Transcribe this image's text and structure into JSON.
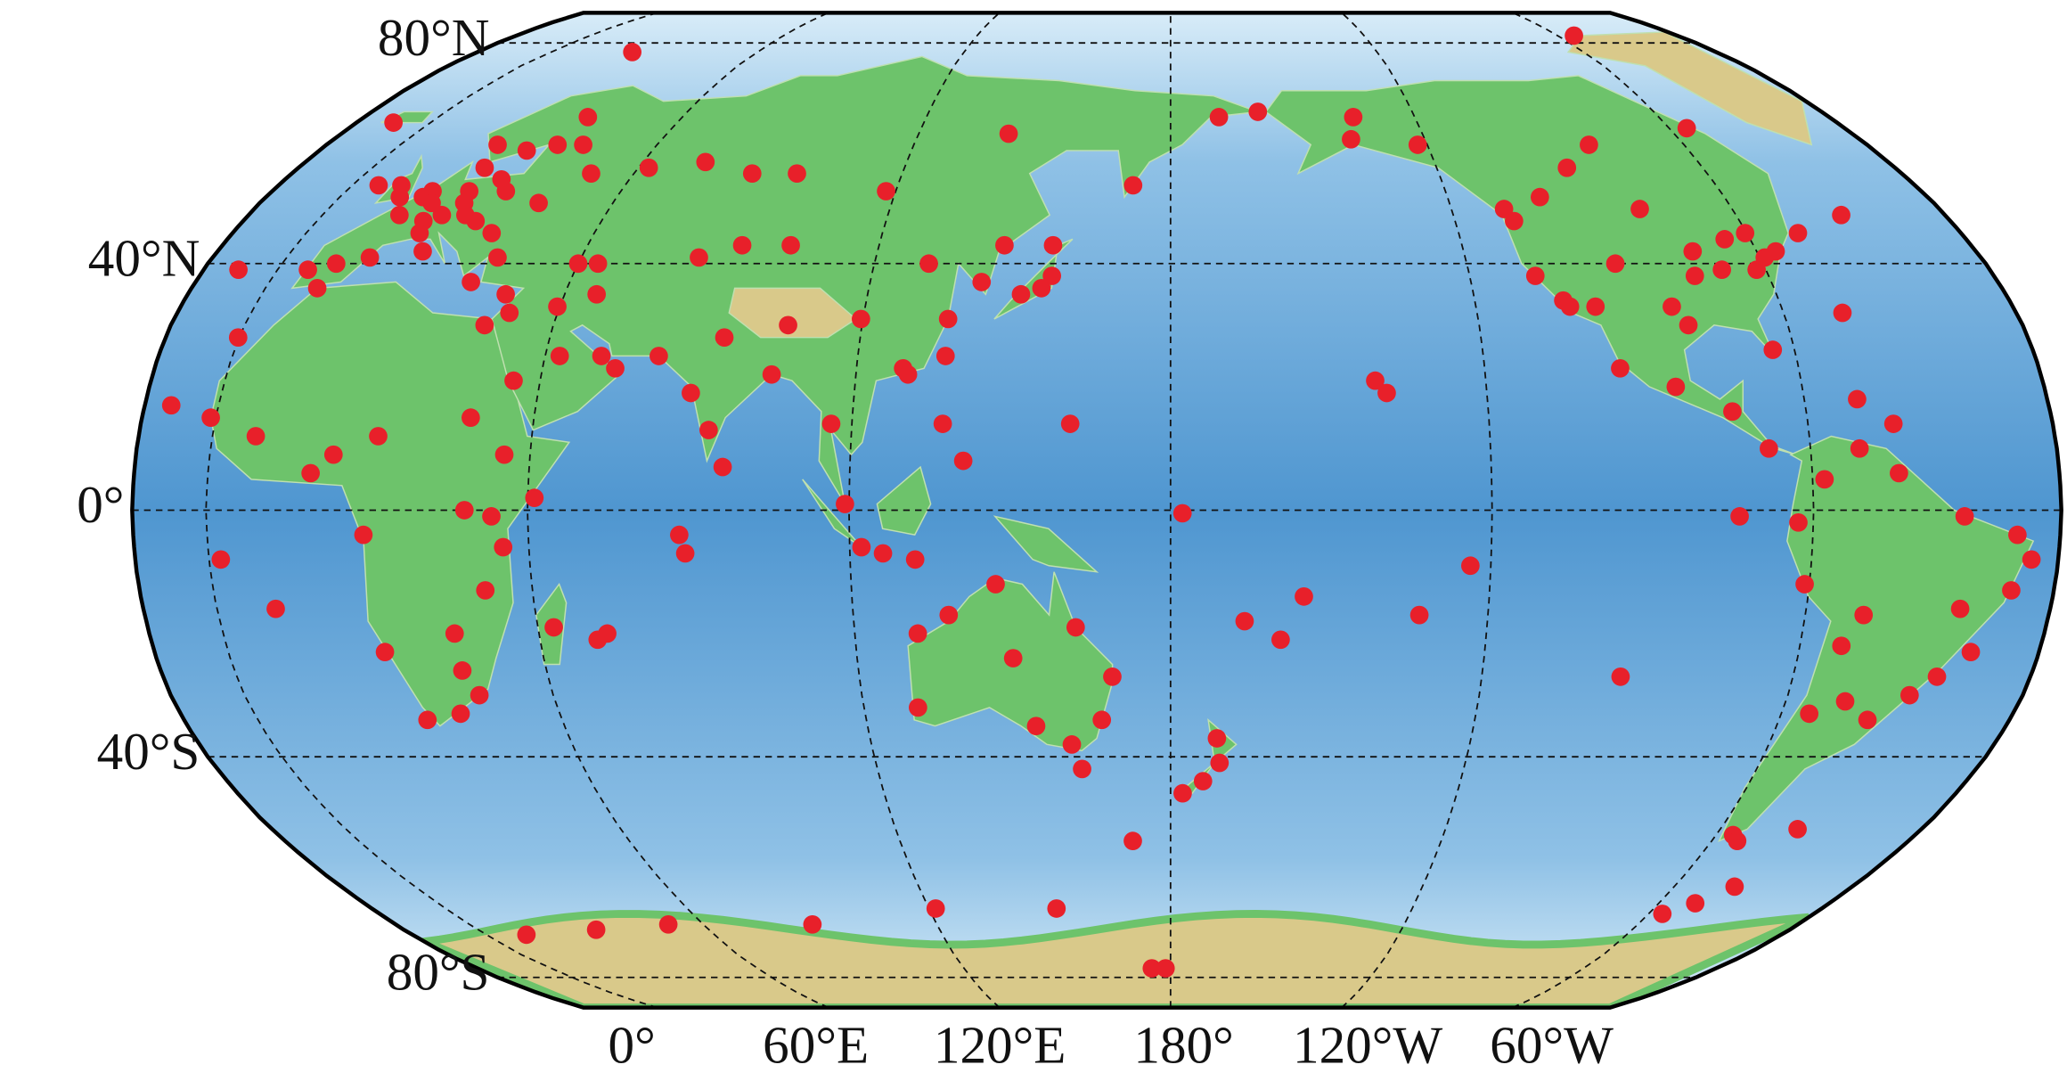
{
  "map": {
    "lat_ticks": [
      {
        "value": 80,
        "label": "80°N"
      },
      {
        "value": 40,
        "label": "40°N"
      },
      {
        "value": 0,
        "label": "0°"
      },
      {
        "value": -40,
        "label": "40°S"
      },
      {
        "value": -80,
        "label": "80°S"
      }
    ],
    "lon_ticks": [
      {
        "value": 0,
        "label": "0°"
      },
      {
        "value": 60,
        "label": "60°E"
      },
      {
        "value": 120,
        "label": "120°E"
      },
      {
        "value": 180,
        "label": "180°"
      },
      {
        "value": -120,
        "label": "120°W"
      },
      {
        "value": -60,
        "label": "60°W"
      }
    ],
    "station_color": "#e8202a",
    "stations": [
      [
        -9,
        39
      ],
      [
        -4,
        40
      ],
      [
        2,
        41
      ],
      [
        2,
        48
      ],
      [
        4,
        51
      ],
      [
        5,
        52
      ],
      [
        7,
        50
      ],
      [
        8,
        47
      ],
      [
        9,
        45
      ],
      [
        11,
        48
      ],
      [
        12,
        42
      ],
      [
        13,
        52
      ],
      [
        14,
        50
      ],
      [
        16,
        48
      ],
      [
        18,
        54
      ],
      [
        19,
        47
      ],
      [
        21,
        52
      ],
      [
        24,
        45
      ],
      [
        24,
        60
      ],
      [
        25,
        37
      ],
      [
        30,
        60
      ],
      [
        30,
        50
      ],
      [
        37,
        55
      ],
      [
        10,
        60
      ],
      [
        18,
        59
      ],
      [
        25,
        65
      ],
      [
        12,
        56
      ],
      [
        -3,
        53
      ],
      [
        -1,
        51
      ],
      [
        -8,
        53
      ],
      [
        -21,
        64
      ],
      [
        15,
        78
      ],
      [
        -5,
        36
      ],
      [
        28,
        41
      ],
      [
        33,
        35
      ],
      [
        35,
        32
      ],
      [
        45,
        40
      ],
      [
        44,
        33
      ],
      [
        49,
        40
      ],
      [
        51,
        35
      ],
      [
        39,
        21
      ],
      [
        47,
        25
      ],
      [
        58,
        23
      ],
      [
        55,
        25
      ],
      [
        49,
        56
      ],
      [
        61,
        57
      ],
      [
        73,
        55
      ],
      [
        83,
        55
      ],
      [
        104,
        52
      ],
      [
        129,
        62
      ],
      [
        87,
        43
      ],
      [
        69,
        41
      ],
      [
        77,
        43
      ],
      [
        90,
        30
      ],
      [
        104,
        31
      ],
      [
        116,
        40
      ],
      [
        121,
        31
      ],
      [
        113,
        23
      ],
      [
        114,
        22
      ],
      [
        121,
        25
      ],
      [
        127,
        37
      ],
      [
        135,
        35
      ],
      [
        139,
        36
      ],
      [
        141,
        38
      ],
      [
        141,
        43
      ],
      [
        131,
        43
      ],
      [
        158,
        53
      ],
      [
        180,
        65
      ],
      [
        -170,
        66
      ],
      [
        100,
        14
      ],
      [
        103,
        1
      ],
      [
        106,
        -6
      ],
      [
        110,
        -7
      ],
      [
        116,
        -8
      ],
      [
        77,
        13
      ],
      [
        80,
        7
      ],
      [
        78,
        28
      ],
      [
        73,
        19
      ],
      [
        66,
        25
      ],
      [
        88,
        22
      ],
      [
        121,
        14
      ],
      [
        125,
        8
      ],
      [
        145,
        14
      ],
      [
        166,
        -0.5
      ],
      [
        -17,
        15
      ],
      [
        -16,
        28
      ],
      [
        -8,
        12
      ],
      [
        3,
        6
      ],
      [
        7,
        9
      ],
      [
        13,
        -4
      ],
      [
        15,
        12
      ],
      [
        32,
        0
      ],
      [
        37,
        -1
      ],
      [
        39,
        -6
      ],
      [
        45,
        2
      ],
      [
        39,
        9
      ],
      [
        32,
        15
      ],
      [
        31,
        30
      ],
      [
        28,
        -26
      ],
      [
        18,
        -34
      ],
      [
        25,
        -33
      ],
      [
        30,
        -30
      ],
      [
        28,
        -20
      ],
      [
        35,
        -13
      ],
      [
        47,
        -19
      ],
      [
        57,
        -20
      ],
      [
        55,
        -21
      ],
      [
        14,
        -23
      ],
      [
        -5,
        -16
      ],
      [
        -14,
        -8
      ],
      [
        -25,
        17
      ],
      [
        -23,
        39
      ],
      [
        73,
        -7
      ],
      [
        72,
        -4
      ],
      [
        115,
        -32
      ],
      [
        116,
        -20
      ],
      [
        131,
        -12
      ],
      [
        134,
        -24
      ],
      [
        146,
        -19
      ],
      [
        153,
        -27
      ],
      [
        151,
        -34
      ],
      [
        145,
        -38
      ],
      [
        147,
        -42
      ],
      [
        138,
        -35
      ],
      [
        122,
        -17
      ],
      [
        174,
        -37
      ],
      [
        175,
        -41
      ],
      [
        172,
        -44
      ],
      [
        168,
        -46
      ],
      [
        178,
        -18
      ],
      [
        -149,
        -17
      ],
      [
        -157,
        21
      ],
      [
        -155,
        19
      ],
      [
        -171,
        -14
      ],
      [
        -175,
        -21
      ],
      [
        -140,
        -9
      ],
      [
        -109,
        -27
      ],
      [
        158,
        -54
      ],
      [
        140,
        -66
      ],
      [
        110,
        -66
      ],
      [
        77,
        -69
      ],
      [
        40,
        -69
      ],
      [
        20,
        -70
      ],
      [
        0,
        -71
      ],
      [
        -58,
        -62
      ],
      [
        -68,
        -67
      ],
      [
        -63,
        -65
      ],
      [
        166,
        -78
      ],
      [
        170,
        -78
      ],
      [
        -150,
        61
      ],
      [
        -147,
        65
      ],
      [
        -135,
        60
      ],
      [
        -123,
        49
      ],
      [
        -122,
        47
      ],
      [
        -122,
        38
      ],
      [
        -118,
        34
      ],
      [
        -117,
        33
      ],
      [
        -112,
        33
      ],
      [
        -105,
        40
      ],
      [
        -97,
        33
      ],
      [
        -95,
        30
      ],
      [
        -90,
        38
      ],
      [
        -88,
        42
      ],
      [
        -84,
        39
      ],
      [
        -80,
        26
      ],
      [
        -77,
        39
      ],
      [
        -74,
        41
      ],
      [
        -71,
        42
      ],
      [
        -64,
        45
      ],
      [
        -52,
        48
      ],
      [
        -75,
        45
      ],
      [
        -80,
        44
      ],
      [
        -94,
        49
      ],
      [
        -114,
        51
      ],
      [
        -104,
        56
      ],
      [
        -95,
        60
      ],
      [
        -68,
        63
      ],
      [
        -62,
        82
      ],
      [
        -90,
        16
      ],
      [
        -84,
        10
      ],
      [
        -100,
        20
      ],
      [
        -110,
        23
      ],
      [
        -66,
        18
      ],
      [
        -60,
        14
      ],
      [
        -64,
        32
      ],
      [
        -77,
        -12
      ],
      [
        -79,
        -2
      ],
      [
        -74,
        5
      ],
      [
        -67,
        10
      ],
      [
        -60,
        6
      ],
      [
        -48,
        -1
      ],
      [
        -38,
        -4
      ],
      [
        -35,
        -8
      ],
      [
        -38,
        -13
      ],
      [
        -43,
        -23
      ],
      [
        -47,
        -16
      ],
      [
        -48,
        -27
      ],
      [
        -52,
        -30
      ],
      [
        -58,
        -34
      ],
      [
        -64,
        -31
      ],
      [
        -70,
        -33
      ],
      [
        -68,
        -22
      ],
      [
        -65,
        -17
      ],
      [
        -70,
        -53
      ],
      [
        -68,
        -54
      ],
      [
        -90,
        -1
      ],
      [
        -57,
        -52
      ]
    ]
  }
}
